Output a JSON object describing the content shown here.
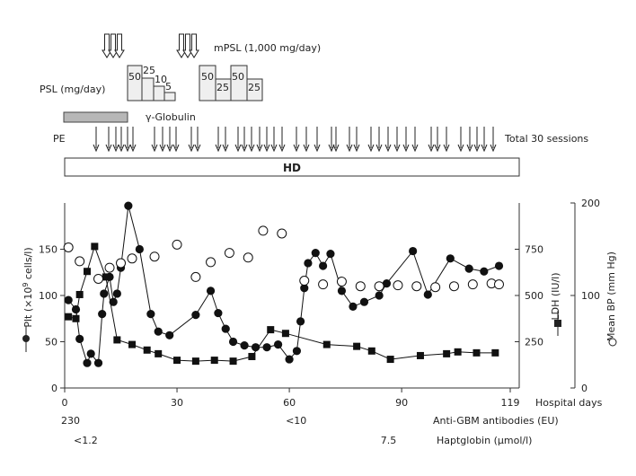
{
  "chart_data": {
    "type": "line",
    "x_unit_label": "Hospital days",
    "x_ticks": [
      0,
      30,
      60,
      90,
      119
    ],
    "xlim": [
      0,
      119
    ],
    "axes": {
      "plt": {
        "label_main": "Plt (×10",
        "label_sup": "9",
        "label_tail": " cells/l)",
        "ylim": [
          0,
          200
        ],
        "ticks": [
          0,
          50,
          100,
          150
        ]
      },
      "ldh": {
        "label": "LDH (IU/l)",
        "ylim": [
          0,
          1000
        ],
        "ticks": [
          250,
          500,
          750
        ]
      },
      "bp": {
        "label": "Mean BP (mm Hg)",
        "ylim": [
          0,
          200
        ],
        "ticks": [
          0,
          100,
          200
        ]
      }
    },
    "series": [
      {
        "name": "Plt",
        "axis": "plt",
        "marker": "filled-circle",
        "points": [
          [
            1,
            95
          ],
          [
            3,
            85
          ],
          [
            4,
            53
          ],
          [
            6,
            27
          ],
          [
            7,
            37
          ],
          [
            9,
            27
          ],
          [
            10,
            80
          ],
          [
            10.5,
            102
          ],
          [
            12,
            120
          ],
          [
            13,
            93
          ],
          [
            14,
            102
          ],
          [
            15,
            130
          ],
          [
            17,
            197
          ],
          [
            20,
            150
          ],
          [
            23,
            80
          ],
          [
            25,
            61
          ],
          [
            28,
            57
          ],
          [
            35,
            79
          ],
          [
            39,
            105
          ],
          [
            41,
            81
          ],
          [
            43,
            64
          ],
          [
            45,
            50
          ],
          [
            48,
            46
          ],
          [
            51,
            44
          ],
          [
            54,
            44
          ],
          [
            57,
            47
          ],
          [
            60,
            31
          ],
          [
            62,
            40
          ],
          [
            63,
            72
          ],
          [
            64,
            108
          ],
          [
            65,
            135
          ],
          [
            67,
            146
          ],
          [
            69,
            132
          ],
          [
            71,
            145
          ],
          [
            74,
            105
          ],
          [
            77,
            88
          ],
          [
            80,
            93
          ],
          [
            84,
            100
          ],
          [
            86,
            113
          ],
          [
            93,
            148
          ],
          [
            97,
            101
          ],
          [
            103,
            140
          ],
          [
            108,
            129
          ],
          [
            112,
            126
          ],
          [
            116,
            132
          ]
        ]
      },
      {
        "name": "LDH",
        "axis": "ldh",
        "marker": "filled-square",
        "points": [
          [
            1,
            385
          ],
          [
            3,
            375
          ],
          [
            4,
            505
          ],
          [
            6,
            630
          ],
          [
            8,
            765
          ],
          [
            11,
            600
          ],
          [
            14,
            260
          ],
          [
            18,
            235
          ],
          [
            22,
            205
          ],
          [
            25,
            185
          ],
          [
            30,
            150
          ],
          [
            35,
            145
          ],
          [
            40,
            150
          ],
          [
            45,
            145
          ],
          [
            50,
            170
          ],
          [
            55,
            315
          ],
          [
            59,
            295
          ],
          [
            70,
            235
          ],
          [
            78,
            225
          ],
          [
            82,
            200
          ],
          [
            87,
            155
          ],
          [
            95,
            175
          ],
          [
            102,
            185
          ],
          [
            105,
            195
          ],
          [
            110,
            190
          ],
          [
            115,
            190
          ]
        ]
      },
      {
        "name": "Mean BP",
        "axis": "bp",
        "marker": "open-circle",
        "points": [
          [
            1,
            152
          ],
          [
            4,
            137
          ],
          [
            9,
            118
          ],
          [
            12,
            130
          ],
          [
            15,
            135
          ],
          [
            18,
            140
          ],
          [
            24,
            142
          ],
          [
            30,
            155
          ],
          [
            35,
            120
          ],
          [
            39,
            136
          ],
          [
            44,
            146
          ],
          [
            49,
            141
          ],
          [
            53,
            170
          ],
          [
            58,
            167
          ],
          [
            64,
            116
          ],
          [
            69,
            112
          ],
          [
            74,
            115
          ],
          [
            79,
            110
          ],
          [
            84,
            110
          ],
          [
            89,
            111
          ],
          [
            94,
            110
          ],
          [
            99,
            109
          ],
          [
            104,
            110
          ],
          [
            109,
            112
          ],
          [
            114,
            113
          ],
          [
            116,
            112
          ]
        ]
      }
    ]
  },
  "treatments": {
    "mpsl_label": "mPSL (1,000 mg/day)",
    "psl_label": "PSL (mg/day)",
    "psl_steps_1": [
      "50",
      "25",
      "10",
      "5"
    ],
    "psl_steps_2": [
      "50",
      "25",
      "50",
      "25"
    ],
    "gamma_globulin_label": "γ-Globulin",
    "pe_label": "PE",
    "pe_total_label": "Total 30 sessions",
    "hd_label": "HD"
  },
  "footer": {
    "anti_gbm_label": "Anti-GBM antibodies (EU)",
    "anti_gbm_values": [
      {
        "day": 0,
        "text": "230"
      },
      {
        "day": 60,
        "text": "<10"
      }
    ],
    "haptoglobin_label": "Haptglobin (μmol/l)",
    "haptoglobin_values": [
      {
        "day": 0,
        "text": "<1.2"
      },
      {
        "day": 82,
        "text": "7.5"
      }
    ]
  }
}
